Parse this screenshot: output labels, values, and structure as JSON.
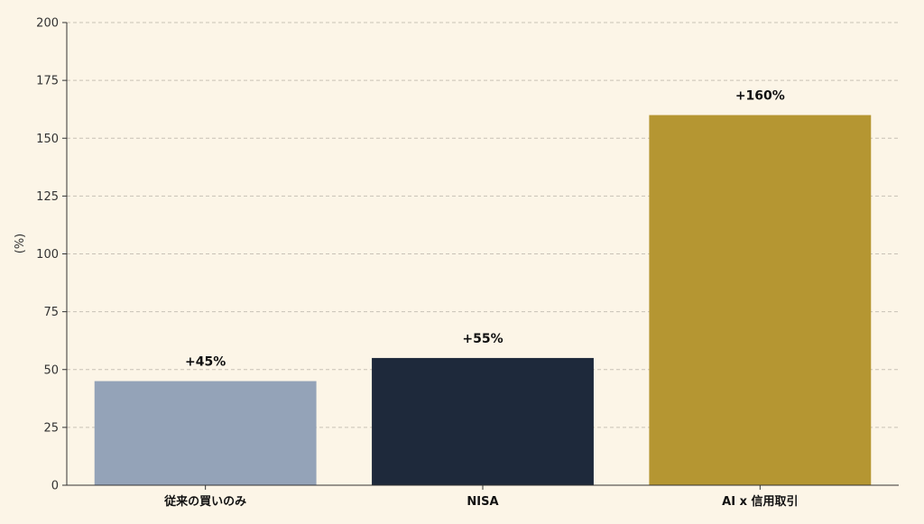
{
  "chart_data": {
    "type": "bar",
    "categories": [
      "従来の買いのみ",
      "NISA",
      "AI x 信用取引"
    ],
    "values": [
      45,
      55,
      160
    ],
    "data_labels": [
      "+45%",
      "+55%",
      "+160%"
    ],
    "colors": [
      "#94a3b8",
      "#1e293b",
      "#b59632"
    ],
    "title": "",
    "xlabel": "",
    "ylabel": "(%)",
    "ylim": [
      0,
      200
    ],
    "yticks": [
      0,
      25,
      50,
      75,
      100,
      125,
      150,
      175,
      200
    ],
    "grid": true,
    "legend": "none"
  },
  "style": {
    "background": "#fcf5e7",
    "grid_color": "#c8c2b6",
    "axis_color": "#333333"
  }
}
